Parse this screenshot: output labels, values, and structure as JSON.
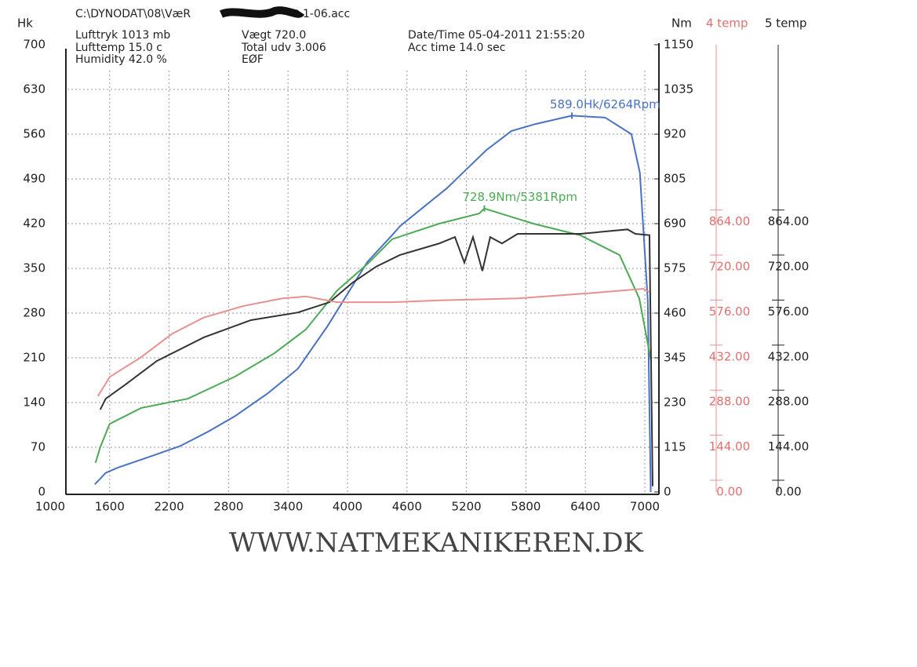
{
  "chart_data": {
    "type": "line",
    "file_prefix": "C:\\DYNODAT\\08\\VæR",
    "file_suffix": "1-06.acc",
    "info": [
      "Lufttryk  1013 mb",
      "Lufttemp  15.0 c",
      "Humidity  42.0 %",
      "Vægt    720.0",
      "Total udv 3.006",
      "EØF",
      "Date/Time 05-04-2011 21:55:20",
      "Acc time  14.0 sec"
    ],
    "ylabel": "Hk",
    "y2label": "Nm",
    "temp4_label": "4 temp",
    "temp5_label": "5 temp",
    "footer": "WWW.NATMEKANIKEREN.DK",
    "annotations": [
      {
        "text": "589.0Hk/6264Rpm",
        "x": 6264,
        "y": 589,
        "axis": "y"
      },
      {
        "text": "728.9Nm/5381Rpm",
        "x": 5381,
        "y": 728.9,
        "axis": "y2"
      }
    ],
    "xlim": [
      1000,
      7000
    ],
    "xticks": [
      1000,
      1600,
      2200,
      2800,
      3400,
      4000,
      4600,
      5200,
      5800,
      6400,
      7000
    ],
    "ylim": [
      0,
      700
    ],
    "yticks": [
      0,
      70,
      140,
      210,
      280,
      350,
      420,
      490,
      560,
      630,
      700
    ],
    "y2lim": [
      0,
      1150
    ],
    "y2ticks": [
      0,
      115,
      230,
      345,
      460,
      575,
      690,
      805,
      920,
      1035,
      1150
    ],
    "templim": [
      0,
      1430
    ],
    "tempticks": [
      {
        "value": 0,
        "label": "0.00"
      },
      {
        "value": 144,
        "label": "144.00"
      },
      {
        "value": 288,
        "label": "288.00"
      },
      {
        "value": 432,
        "label": "432.00"
      },
      {
        "value": 576,
        "label": "576.00"
      },
      {
        "value": 720,
        "label": "720.00"
      },
      {
        "value": 864,
        "label": "864.00"
      }
    ],
    "grid": true,
    "series": [
      {
        "color": "#4a72c2",
        "axis": "y",
        "x": [
          1450,
          1500,
          1560,
          1680,
          2000,
          2313,
          2600,
          2867,
          3200,
          3500,
          3800,
          4000,
          4200,
          4450,
          4530,
          4800,
          5000,
          5200,
          5400,
          5654,
          5900,
          6264,
          6600,
          6865,
          6950,
          7030,
          7060
        ],
        "values": [
          12,
          20,
          30,
          38,
          55,
          72,
          95,
          119,
          155,
          193,
          260,
          310,
          360,
          402,
          416,
          450,
          475,
          505,
          535,
          565,
          576,
          589,
          586,
          560,
          500,
          300,
          0
        ]
      },
      {
        "color": "#4caa55",
        "axis": "y2",
        "x": [
          1457,
          1505,
          1600,
          1917,
          2390,
          2867,
          3263,
          3580,
          3896,
          4213,
          4450,
          4925,
          5329,
          5381,
          5875,
          6350,
          6746,
          6944,
          7063
        ],
        "values": [
          75,
          115,
          175,
          216,
          240,
          297,
          357,
          418,
          518,
          589,
          650,
          690,
          716,
          728.9,
          690,
          660,
          609,
          498,
          337
        ]
      },
      {
        "color": "#333333",
        "axis": "y",
        "x": [
          1505,
          1560,
          1758,
          2075,
          2550,
          3025,
          3500,
          3817,
          4054,
          4292,
          4530,
          4925,
          5084,
          5179,
          5266,
          5361,
          5440,
          5559,
          5717,
          6350,
          6826,
          6905,
          7047,
          7079
        ],
        "values": [
          129,
          146,
          168,
          205,
          242,
          269,
          281,
          297,
          328,
          353,
          371,
          389,
          399,
          359,
          399,
          346,
          399,
          389,
          404,
          404,
          411,
          404,
          402,
          9
        ]
      },
      {
        "color": "#e89090",
        "axis": "y",
        "x": [
          1481,
          1600,
          1917,
          2233,
          2550,
          2946,
          3342,
          3580,
          3896,
          4450,
          4925,
          5717,
          6509,
          6984,
          7047
        ],
        "values": [
          150,
          180,
          211,
          248,
          273,
          291,
          303,
          306,
          297,
          297,
          300,
          303,
          312,
          318,
          313
        ]
      }
    ]
  }
}
